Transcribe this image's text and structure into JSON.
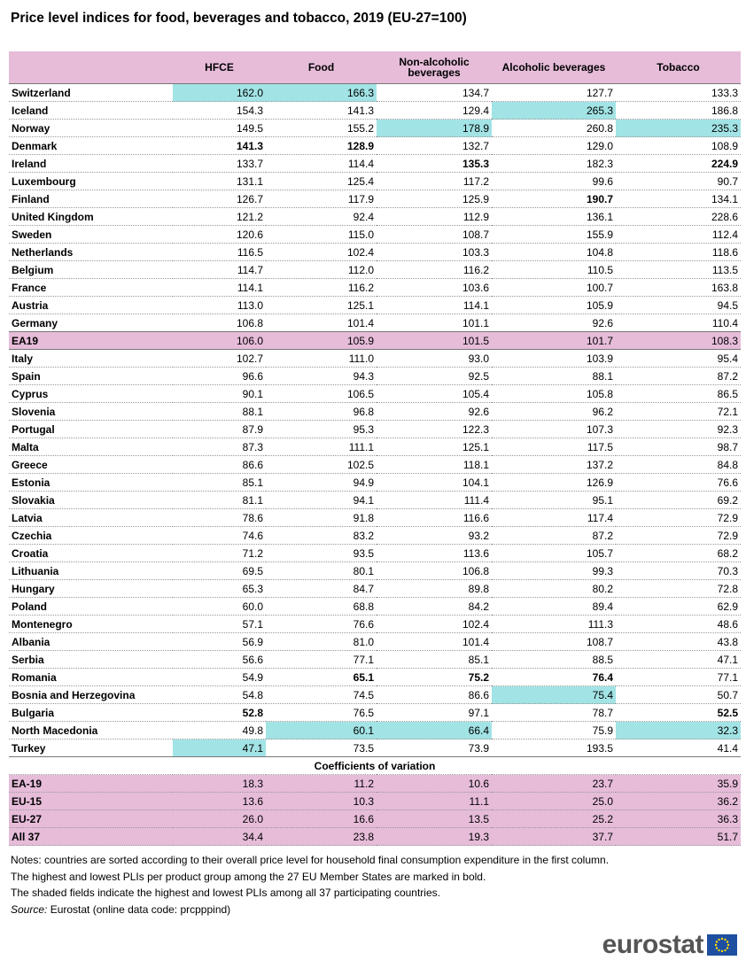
{
  "title": "Price level indices for food, beverages and tobacco, 2019 (EU-27=100)",
  "table": {
    "columns": [
      "HFCE",
      "Food",
      "Non-alcoholic beverages",
      "Alcoholic beverages",
      "Tobacco"
    ],
    "rows": [
      {
        "label": "Switzerland",
        "cells": [
          "162.0",
          "166.3",
          "134.7",
          "127.7",
          "133.3"
        ],
        "shaded": [
          0,
          1
        ]
      },
      {
        "label": "Iceland",
        "cells": [
          "154.3",
          "141.3",
          "129.4",
          "265.3",
          "186.8"
        ],
        "shaded": [
          3
        ]
      },
      {
        "label": "Norway",
        "cells": [
          "149.5",
          "155.2",
          "178.9",
          "260.8",
          "235.3"
        ],
        "shaded": [
          2,
          4
        ]
      },
      {
        "label": "Denmark",
        "cells": [
          "141.3",
          "128.9",
          "132.7",
          "129.0",
          "108.9"
        ],
        "bold": [
          0,
          1
        ]
      },
      {
        "label": "Ireland",
        "cells": [
          "133.7",
          "114.4",
          "135.3",
          "182.3",
          "224.9"
        ],
        "bold": [
          2,
          4
        ]
      },
      {
        "label": "Luxembourg",
        "cells": [
          "131.1",
          "125.4",
          "117.2",
          "99.6",
          "90.7"
        ]
      },
      {
        "label": "Finland",
        "cells": [
          "126.7",
          "117.9",
          "125.9",
          "190.7",
          "134.1"
        ],
        "bold": [
          3
        ]
      },
      {
        "label": "United Kingdom",
        "cells": [
          "121.2",
          "92.4",
          "112.9",
          "136.1",
          "228.6"
        ]
      },
      {
        "label": "Sweden",
        "cells": [
          "120.6",
          "115.0",
          "108.7",
          "155.9",
          "112.4"
        ]
      },
      {
        "label": "Netherlands",
        "cells": [
          "116.5",
          "102.4",
          "103.3",
          "104.8",
          "118.6"
        ]
      },
      {
        "label": "Belgium",
        "cells": [
          "114.7",
          "112.0",
          "116.2",
          "110.5",
          "113.5"
        ]
      },
      {
        "label": "France",
        "cells": [
          "114.1",
          "116.2",
          "103.6",
          "100.7",
          "163.8"
        ]
      },
      {
        "label": "Austria",
        "cells": [
          "113.0",
          "125.1",
          "114.1",
          "105.9",
          "94.5"
        ]
      },
      {
        "label": "Germany",
        "cells": [
          "106.8",
          "101.4",
          "101.1",
          "92.6",
          "110.4"
        ]
      },
      {
        "label": "EA19",
        "cells": [
          "106.0",
          "105.9",
          "101.5",
          "101.7",
          "108.3"
        ],
        "highlight": true
      },
      {
        "label": "Italy",
        "cells": [
          "102.7",
          "111.0",
          "93.0",
          "103.9",
          "95.4"
        ]
      },
      {
        "label": "Spain",
        "cells": [
          "96.6",
          "94.3",
          "92.5",
          "88.1",
          "87.2"
        ]
      },
      {
        "label": "Cyprus",
        "cells": [
          "90.1",
          "106.5",
          "105.4",
          "105.8",
          "86.5"
        ]
      },
      {
        "label": "Slovenia",
        "cells": [
          "88.1",
          "96.8",
          "92.6",
          "96.2",
          "72.1"
        ]
      },
      {
        "label": "Portugal",
        "cells": [
          "87.9",
          "95.3",
          "122.3",
          "107.3",
          "92.3"
        ]
      },
      {
        "label": "Malta",
        "cells": [
          "87.3",
          "111.1",
          "125.1",
          "117.5",
          "98.7"
        ]
      },
      {
        "label": "Greece",
        "cells": [
          "86.6",
          "102.5",
          "118.1",
          "137.2",
          "84.8"
        ]
      },
      {
        "label": "Estonia",
        "cells": [
          "85.1",
          "94.9",
          "104.1",
          "126.9",
          "76.6"
        ]
      },
      {
        "label": "Slovakia",
        "cells": [
          "81.1",
          "94.1",
          "111.4",
          "95.1",
          "69.2"
        ]
      },
      {
        "label": "Latvia",
        "cells": [
          "78.6",
          "91.8",
          "116.6",
          "117.4",
          "72.9"
        ]
      },
      {
        "label": "Czechia",
        "cells": [
          "74.6",
          "83.2",
          "93.2",
          "87.2",
          "72.9"
        ]
      },
      {
        "label": "Croatia",
        "cells": [
          "71.2",
          "93.5",
          "113.6",
          "105.7",
          "68.2"
        ]
      },
      {
        "label": "Lithuania",
        "cells": [
          "69.5",
          "80.1",
          "106.8",
          "99.3",
          "70.3"
        ]
      },
      {
        "label": "Hungary",
        "cells": [
          "65.3",
          "84.7",
          "89.8",
          "80.2",
          "72.8"
        ]
      },
      {
        "label": "Poland",
        "cells": [
          "60.0",
          "68.8",
          "84.2",
          "89.4",
          "62.9"
        ]
      },
      {
        "label": "Montenegro",
        "cells": [
          "57.1",
          "76.6",
          "102.4",
          "111.3",
          "48.6"
        ]
      },
      {
        "label": "Albania",
        "cells": [
          "56.9",
          "81.0",
          "101.4",
          "108.7",
          "43.8"
        ]
      },
      {
        "label": "Serbia",
        "cells": [
          "56.6",
          "77.1",
          "85.1",
          "88.5",
          "47.1"
        ]
      },
      {
        "label": "Romania",
        "cells": [
          "54.9",
          "65.1",
          "75.2",
          "76.4",
          "77.1"
        ],
        "bold": [
          1,
          2,
          3
        ]
      },
      {
        "label": "Bosnia and Herzegovina",
        "cells": [
          "54.8",
          "74.5",
          "86.6",
          "75.4",
          "50.7"
        ],
        "shaded": [
          3
        ]
      },
      {
        "label": "Bulgaria",
        "cells": [
          "52.8",
          "76.5",
          "97.1",
          "78.7",
          "52.5"
        ],
        "bold": [
          0,
          4
        ]
      },
      {
        "label": "North Macedonia",
        "cells": [
          "49.8",
          "60.1",
          "66.4",
          "75.9",
          "32.3"
        ],
        "shaded": [
          1,
          2,
          4
        ]
      },
      {
        "label": "Turkey",
        "cells": [
          "47.1",
          "73.5",
          "73.9",
          "193.5",
          "41.4"
        ],
        "shaded": [
          0
        ]
      }
    ],
    "cv_section": {
      "title": "Coefficients of variation",
      "rows": [
        {
          "label": "EA-19",
          "cells": [
            "18.3",
            "11.2",
            "10.6",
            "23.7",
            "35.9"
          ]
        },
        {
          "label": "EU-15",
          "cells": [
            "13.6",
            "10.3",
            "11.1",
            "25.0",
            "36.2"
          ]
        },
        {
          "label": "EU-27",
          "cells": [
            "26.0",
            "16.6",
            "13.5",
            "25.2",
            "36.3"
          ]
        },
        {
          "label": "All 37",
          "cells": [
            "34.4",
            "23.8",
            "19.3",
            "37.7",
            "51.7"
          ]
        }
      ]
    }
  },
  "notes": [
    "Notes: countries are sorted according to their overall price level for household final consumption expenditure in the first column.",
    "The highest and lowest PLIs per product group among the 27 EU Member States are marked in bold.",
    "The shaded fields indicate the highest and lowest PLIs among all 37 participating countries."
  ],
  "source": {
    "label": "Source:",
    "text": "Eurostat (online data code: prcpppind)"
  },
  "logo": "eurostat"
}
